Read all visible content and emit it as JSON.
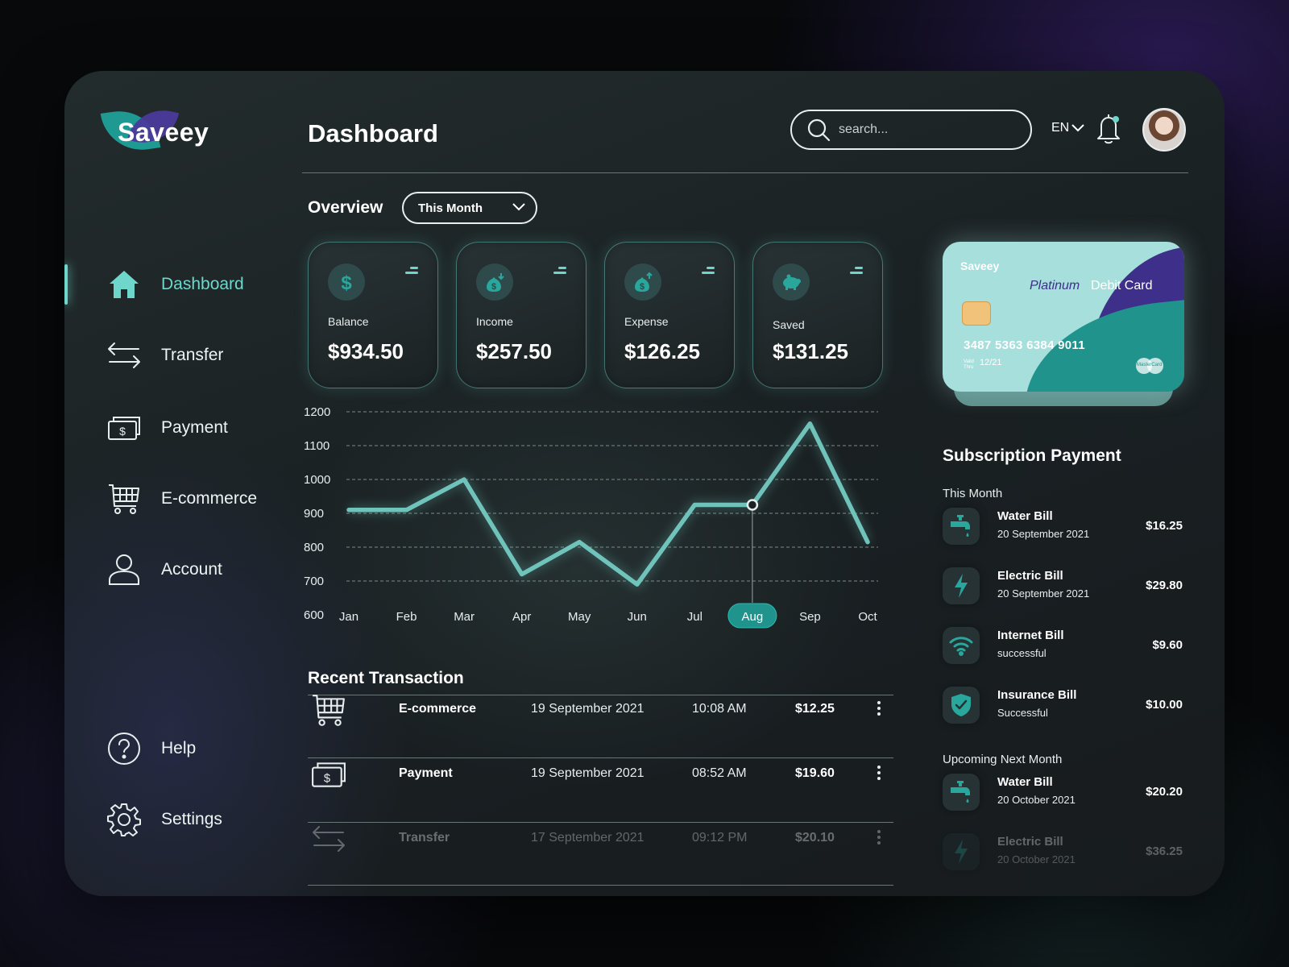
{
  "app": {
    "name": "Saveey"
  },
  "sidebar": {
    "items": [
      {
        "label": "Dashboard",
        "icon": "home-icon"
      },
      {
        "label": "Transfer",
        "icon": "transfer-icon"
      },
      {
        "label": "Payment",
        "icon": "payment-icon"
      },
      {
        "label": "E-commerce",
        "icon": "cart-icon"
      },
      {
        "label": "Account",
        "icon": "user-icon"
      }
    ],
    "bottom": [
      {
        "label": "Help",
        "icon": "help-icon"
      },
      {
        "label": "Settings",
        "icon": "gear-icon"
      }
    ]
  },
  "header": {
    "title": "Dashboard",
    "search_placeholder": "search...",
    "language": "EN"
  },
  "overview": {
    "label": "Overview",
    "period": "This Month",
    "cards": [
      {
        "label": "Balance",
        "value": "$934.50",
        "icon": "dollar-icon"
      },
      {
        "label": "Income",
        "value": "$257.50",
        "icon": "money-bag-down-icon"
      },
      {
        "label": "Expense",
        "value": "$126.25",
        "icon": "money-bag-up-icon"
      },
      {
        "label": "Saved",
        "value": "$131.25",
        "icon": "piggy-bank-icon"
      }
    ]
  },
  "chart_data": {
    "type": "line",
    "categories": [
      "Jan",
      "Feb",
      "Mar",
      "Apr",
      "May",
      "Jun",
      "Jul",
      "Aug",
      "Sep",
      "Oct"
    ],
    "values": [
      910,
      910,
      1000,
      720,
      815,
      690,
      925,
      925,
      1165,
      815
    ],
    "y_ticks": [
      "600",
      "700",
      "800",
      "900",
      "1000",
      "1100",
      "1200"
    ],
    "ylim": [
      600,
      1200
    ],
    "highlighted": "Aug",
    "grid": true,
    "line_color": "#6fc3bb"
  },
  "recent_transactions": {
    "title": "Recent Transaction",
    "rows": [
      {
        "name": "E-commerce",
        "date": "19 September 2021",
        "time": "10:08 AM",
        "amount": "$12.25",
        "icon": "cart-icon"
      },
      {
        "name": "Payment",
        "date": "19 September 2021",
        "time": "08:52 AM",
        "amount": "$19.60",
        "icon": "payment-icon"
      },
      {
        "name": "Transfer",
        "date": "17 September 2021",
        "time": "09:12 PM",
        "amount": "$20.10",
        "icon": "transfer-icon"
      }
    ]
  },
  "debit_card": {
    "brand": "Saveey",
    "tier": "Platinum",
    "type": "Debit Card",
    "number": "3487 5363 6384 9011",
    "valid_label_1": "Valid",
    "valid_label_2": "Thru",
    "expiry": "12/21",
    "network": "MasterCard"
  },
  "subscription": {
    "title": "Subscription Payment",
    "this_month_label": "This Month",
    "this_month": [
      {
        "name": "Water Bill",
        "detail": "20 September 2021",
        "amount": "$16.25",
        "icon": "faucet-icon"
      },
      {
        "name": "Electric Bill",
        "detail": "20 September 2021",
        "amount": "$29.80",
        "icon": "lightning-icon"
      },
      {
        "name": "Internet  Bill",
        "detail": "successful",
        "amount": "$9.60",
        "icon": "wifi-icon"
      },
      {
        "name": "Insurance Bill",
        "detail": "Successful",
        "amount": "$10.00",
        "icon": "shield-check-icon"
      }
    ],
    "next_month_label": "Upcoming Next Month",
    "next_month": [
      {
        "name": "Water Bill",
        "detail": "20 October 2021",
        "amount": "$20.20",
        "icon": "faucet-icon"
      },
      {
        "name": "Electric Bill",
        "detail": "20 October 2021",
        "amount": "$36.25",
        "icon": "lightning-icon"
      }
    ]
  },
  "colors": {
    "accent": "#6fd6cc",
    "card_teal": "#1f938c",
    "card_purple": "#3d2f8a"
  }
}
